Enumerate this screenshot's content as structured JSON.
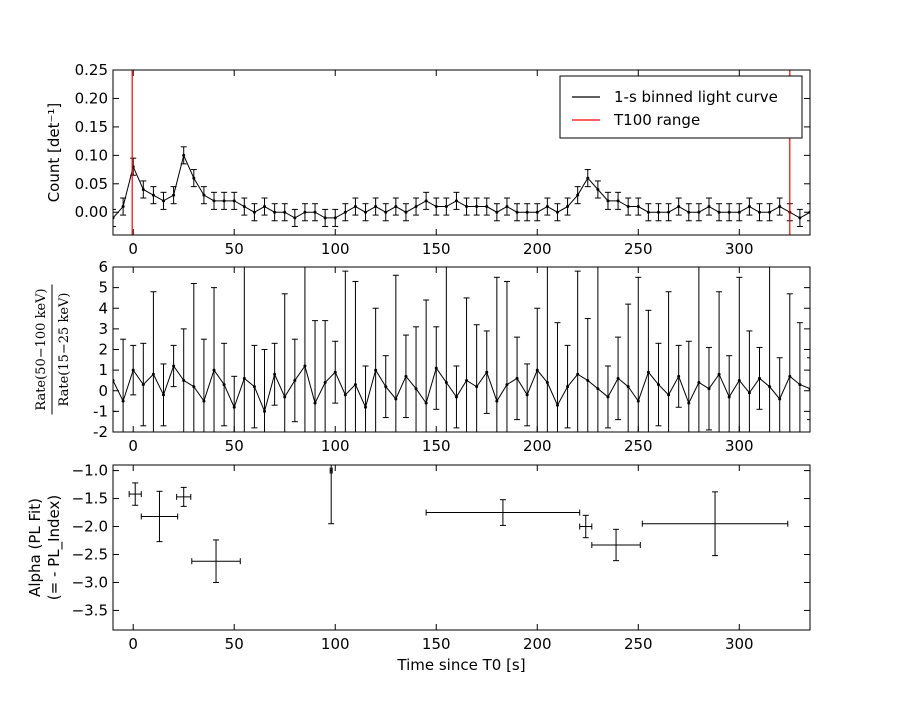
{
  "chart_data": [
    {
      "type": "errorbar",
      "ylabel": "Count [det⁻¹]",
      "xlim": [
        -10,
        335
      ],
      "ylim": [
        -0.04,
        0.25
      ],
      "xticks": [
        0,
        50,
        100,
        150,
        200,
        250,
        300
      ],
      "yticks": [
        {
          "value": 0,
          "label": "0.00"
        },
        {
          "value": 0.05,
          "label": "0.05"
        },
        {
          "value": 0.1,
          "label": "0.10"
        },
        {
          "value": 0.15,
          "label": "0.15"
        },
        {
          "value": 0.2,
          "label": "0.20"
        },
        {
          "value": 0.25,
          "label": "0.25"
        }
      ],
      "x": [
        -10,
        -5,
        0,
        5,
        10,
        15,
        20,
        25,
        30,
        35,
        40,
        45,
        50,
        55,
        60,
        65,
        70,
        75,
        80,
        85,
        90,
        95,
        100,
        105,
        110,
        115,
        120,
        125,
        130,
        135,
        140,
        145,
        150,
        155,
        160,
        165,
        170,
        175,
        180,
        185,
        190,
        195,
        200,
        205,
        210,
        215,
        220,
        225,
        230,
        235,
        240,
        245,
        250,
        255,
        260,
        265,
        270,
        275,
        280,
        285,
        290,
        295,
        300,
        305,
        310,
        315,
        320,
        325,
        330,
        335
      ],
      "series": [
        {
          "name": "1-s binned light curve",
          "color": "#000000",
          "yerr": 0.015,
          "values": [
            -0.01,
            0.01,
            0.08,
            0.04,
            0.03,
            0.02,
            0.03,
            0.1,
            0.06,
            0.03,
            0.02,
            0.02,
            0.02,
            0.01,
            0,
            0.01,
            0,
            0,
            -0.01,
            0,
            0,
            -0.01,
            -0.01,
            0,
            0.01,
            0,
            0.01,
            0,
            0.01,
            0,
            0.01,
            0.02,
            0.01,
            0.01,
            0.02,
            0.01,
            0.01,
            0.01,
            0,
            0.01,
            0,
            0,
            0,
            0.01,
            0,
            0.01,
            0.03,
            0.06,
            0.04,
            0.02,
            0.02,
            0.01,
            0.01,
            0,
            0,
            0,
            0.01,
            0,
            0,
            0.01,
            0,
            0,
            0,
            0.01,
            0,
            0,
            0.01,
            0,
            -0.01,
            0
          ]
        }
      ],
      "vlines": {
        "name": "T100 range",
        "color": "#ff0000",
        "x": [
          -0.5,
          325
        ]
      },
      "legend": "upper right"
    },
    {
      "type": "errorbar",
      "ylabel": [
        "Rate(50−100 keV)",
        "Rate(15−25 keV)"
      ],
      "xlim": [
        -10,
        335
      ],
      "ylim": [
        -2,
        6
      ],
      "xticks": [
        0,
        50,
        100,
        150,
        200,
        250,
        300
      ],
      "yticks": [
        -2,
        -1,
        0,
        1,
        2,
        3,
        4,
        5,
        6
      ],
      "x": [
        -10,
        -5,
        0,
        5,
        10,
        15,
        20,
        25,
        30,
        35,
        40,
        45,
        50,
        55,
        60,
        65,
        70,
        75,
        80,
        85,
        90,
        95,
        100,
        105,
        110,
        115,
        120,
        125,
        130,
        135,
        140,
        145,
        150,
        155,
        160,
        165,
        170,
        175,
        180,
        185,
        190,
        195,
        200,
        205,
        210,
        215,
        220,
        225,
        230,
        235,
        240,
        245,
        250,
        255,
        260,
        265,
        270,
        275,
        280,
        285,
        290,
        295,
        300,
        305,
        310,
        315,
        320,
        325,
        330,
        335
      ],
      "series": [
        {
          "color": "#000000",
          "values": [
            0.5,
            -0.5,
            1,
            0.3,
            0.8,
            -0.2,
            1.2,
            0.5,
            0.2,
            -0.5,
            1,
            0.3,
            -0.8,
            0.6,
            0.2,
            -1,
            0.8,
            -0.3,
            0.5,
            1.2,
            -0.6,
            0.4,
            0.9,
            -0.2,
            0.3,
            -0.8,
            1,
            0.2,
            -0.4,
            0.7,
            0.1,
            -0.6,
            1.1,
            0.4,
            -0.3,
            0.5,
            0.2,
            0.9,
            -0.5,
            0.3,
            0.6,
            -0.2,
            1,
            0.4,
            -0.7,
            0.2,
            0.8,
            0.5,
            0.1,
            -0.3,
            0.6,
            0.2,
            -0.5,
            0.9,
            0.3,
            -0.2,
            0.7,
            -0.6,
            0.4,
            0.1,
            0.8,
            -0.3,
            0.5,
            -0.1,
            0.6,
            0.2,
            -0.4,
            0.7,
            0.3,
            0.1
          ],
          "yerr": [
            1.5,
            3,
            1.2,
            2,
            4,
            1.5,
            1,
            2.5,
            5,
            3,
            4,
            2,
            1.5,
            6,
            2,
            3,
            1.5,
            5,
            2,
            6,
            4,
            3,
            1.5,
            6,
            5,
            2,
            3,
            1.5,
            6,
            2,
            3,
            5,
            2,
            6,
            1.5,
            4,
            3,
            2,
            6,
            5,
            2,
            1.5,
            3,
            6,
            4,
            2,
            5,
            3,
            6,
            1.5,
            2,
            4,
            6,
            3,
            2,
            5,
            1.5,
            3,
            6,
            2,
            4,
            2,
            5,
            3,
            1.5,
            6,
            2,
            4,
            3,
            1.5
          ]
        }
      ]
    },
    {
      "type": "errorbar",
      "ylabel": [
        "Alpha (PL Fit)",
        "(= - PL_Index)"
      ],
      "xlabel": "Time since T0 [s]",
      "xlim": [
        -10,
        335
      ],
      "ylim": [
        -3.85,
        -0.9
      ],
      "xticks": [
        0,
        50,
        100,
        150,
        200,
        250,
        300
      ],
      "yticks": [
        {
          "value": -1,
          "label": "−1.0"
        },
        {
          "value": -1.5,
          "label": "−1.5"
        },
        {
          "value": -2,
          "label": "−2.0"
        },
        {
          "value": -2.5,
          "label": "−2.5"
        },
        {
          "value": -3,
          "label": "−3.0"
        },
        {
          "value": -3.5,
          "label": "−3.5"
        }
      ],
      "x": [
        1,
        13,
        25,
        41,
        98,
        183,
        224,
        239,
        288
      ],
      "xerr": [
        3,
        9,
        3.5,
        12,
        0.5,
        38,
        3,
        12,
        36
      ],
      "series": [
        {
          "color": "#000000",
          "values": [
            -1.42,
            -1.82,
            -1.47,
            -2.62,
            -1.0,
            -1.75,
            -2.0,
            -2.33,
            -1.95
          ],
          "yerr": [
            0.2,
            0.45,
            0.17,
            0.38,
            0.95,
            0.23,
            0.2,
            0.28,
            0.57
          ]
        }
      ]
    }
  ]
}
